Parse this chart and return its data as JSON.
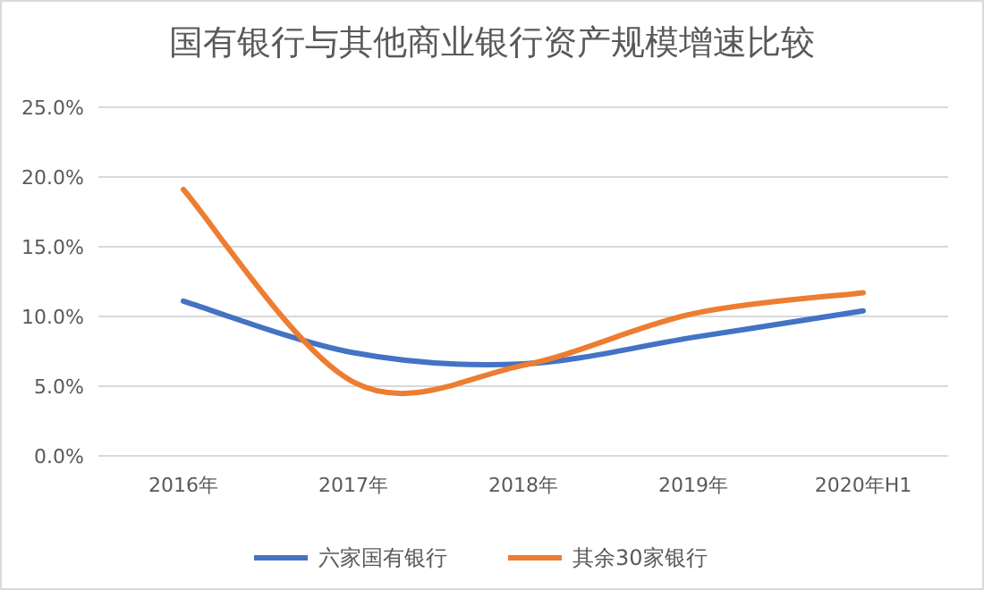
{
  "chart_data": {
    "type": "line",
    "title": "国有银行与其他商业银行资产规模增速比较",
    "categories": [
      "2016年",
      "2017年",
      "2018年",
      "2019年",
      "2020年H1"
    ],
    "series": [
      {
        "name": "六家国有银行",
        "color": "#4472c4",
        "values": [
          11.1,
          7.4,
          6.6,
          8.5,
          10.4
        ]
      },
      {
        "name": "其余30家银行",
        "color": "#ed7d31",
        "values": [
          19.1,
          5.3,
          6.5,
          10.2,
          11.7
        ]
      }
    ],
    "ylim": [
      0,
      25
    ],
    "yticks": [
      {
        "value": 0,
        "label": "0.0%"
      },
      {
        "value": 5,
        "label": "5.0%"
      },
      {
        "value": 10,
        "label": "10.0%"
      },
      {
        "value": 15,
        "label": "15.0%"
      },
      {
        "value": 20,
        "label": "20.0%"
      },
      {
        "value": 25,
        "label": "25.0%"
      }
    ],
    "grid": "y",
    "legend": "bottom"
  }
}
